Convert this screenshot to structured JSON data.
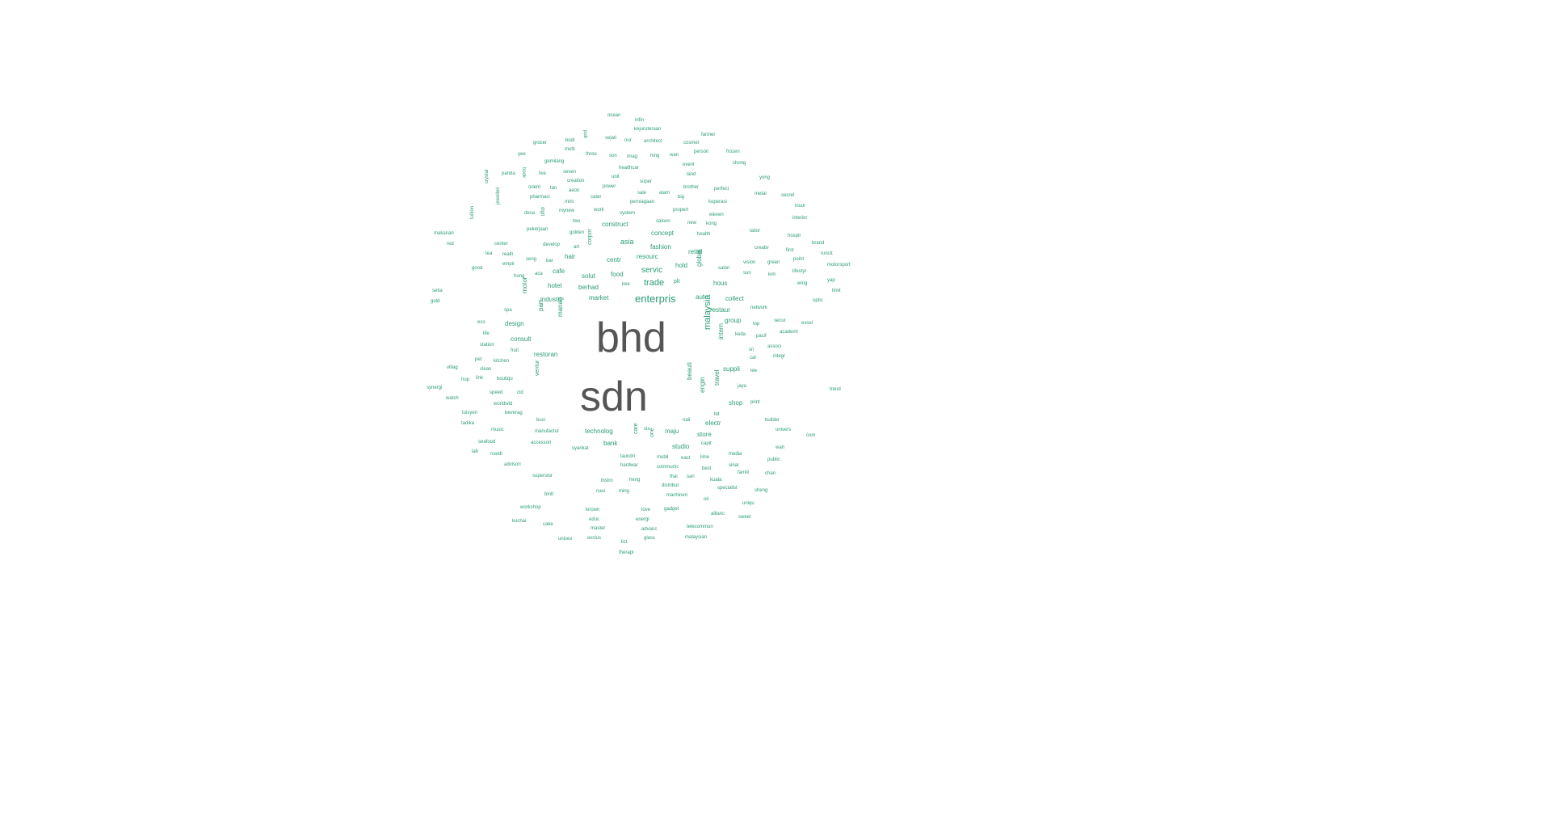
{
  "word_cloud": {
    "colors": {
      "primary_words": "#555555",
      "secondary_words": "#2a9d73"
    },
    "words": [
      {
        "text": "bhd",
        "weight": 100
      },
      {
        "text": "sdn",
        "weight": 100
      },
      {
        "text": "enterpris",
        "weight": 30
      },
      {
        "text": "malaysia",
        "weight": 22
      },
      {
        "text": "trade",
        "weight": 22
      },
      {
        "text": "servic",
        "weight": 20
      },
      {
        "text": "asia",
        "weight": 18
      },
      {
        "text": "concept",
        "weight": 17
      },
      {
        "text": "fashion",
        "weight": 17
      },
      {
        "text": "construct",
        "weight": 17
      },
      {
        "text": "resourc",
        "weight": 16
      },
      {
        "text": "retail",
        "weight": 16
      },
      {
        "text": "hold",
        "weight": 16
      },
      {
        "text": "global",
        "weight": 15
      },
      {
        "text": "food",
        "weight": 17
      },
      {
        "text": "solut",
        "weight": 16
      },
      {
        "text": "centr",
        "weight": 16
      },
      {
        "text": "hous",
        "weight": 16
      },
      {
        "text": "auto",
        "weight": 16
      },
      {
        "text": "collect",
        "weight": 15
      },
      {
        "text": "market",
        "weight": 16
      },
      {
        "text": "berhad",
        "weight": 16
      },
      {
        "text": "cafe",
        "weight": 16
      },
      {
        "text": "hair",
        "weight": 15
      },
      {
        "text": "hotel",
        "weight": 15
      },
      {
        "text": "industri",
        "weight": 16
      },
      {
        "text": "motor",
        "weight": 15
      },
      {
        "text": "part",
        "weight": 15
      },
      {
        "text": "design",
        "weight": 16
      },
      {
        "text": "manag",
        "weight": 15
      },
      {
        "text": "consult",
        "weight": 16
      },
      {
        "text": "restoran",
        "weight": 16
      },
      {
        "text": "restaur",
        "weight": 16
      },
      {
        "text": "group",
        "weight": 15
      },
      {
        "text": "intern",
        "weight": 16
      },
      {
        "text": "suppli",
        "weight": 16
      },
      {
        "text": "beauti",
        "weight": 16
      },
      {
        "text": "engin",
        "weight": 15
      },
      {
        "text": "travel",
        "weight": 15
      },
      {
        "text": "shop",
        "weight": 16
      },
      {
        "text": "ventur",
        "weight": 14
      },
      {
        "text": "corpor",
        "weight": 14
      },
      {
        "text": "technolog",
        "weight": 16
      },
      {
        "text": "bank",
        "weight": 15
      },
      {
        "text": "care",
        "weight": 14
      },
      {
        "text": "one",
        "weight": 14
      },
      {
        "text": "maju",
        "weight": 15
      },
      {
        "text": "studio",
        "weight": 15
      },
      {
        "text": "store",
        "weight": 15
      },
      {
        "text": "electr",
        "weight": 15
      },
      {
        "text": "plt",
        "weight": 14
      },
      {
        "text": "ocean",
        "weight": 10
      },
      {
        "text": "infin",
        "weight": 10
      },
      {
        "text": "kejuruteraan",
        "weight": 10
      },
      {
        "text": "farmer",
        "weight": 10
      },
      {
        "text": "grocer",
        "weight": 10
      },
      {
        "text": "bodi",
        "weight": 10
      },
      {
        "text": "pub",
        "weight": 10
      },
      {
        "text": "sejati",
        "weight": 10
      },
      {
        "text": "nur",
        "weight": 10
      },
      {
        "text": "architect",
        "weight": 10
      },
      {
        "text": "cosmet",
        "weight": 10
      },
      {
        "text": "multi",
        "weight": 10
      },
      {
        "text": "frozen",
        "weight": 10
      },
      {
        "text": "yee",
        "weight": 10
      },
      {
        "text": "three",
        "weight": 10
      },
      {
        "text": "son",
        "weight": 10
      },
      {
        "text": "imag",
        "weight": 10
      },
      {
        "text": "hing",
        "weight": 10
      },
      {
        "text": "wan",
        "weight": 10
      },
      {
        "text": "person",
        "weight": 10
      },
      {
        "text": "gemilang",
        "weight": 10
      },
      {
        "text": "healthcar",
        "weight": 10
      },
      {
        "text": "event",
        "weight": 10
      },
      {
        "text": "chong",
        "weight": 10
      },
      {
        "text": "panda",
        "weight": 10
      },
      {
        "text": "book",
        "weight": 10
      },
      {
        "text": "live",
        "weight": 10
      },
      {
        "text": "seven",
        "weight": 10
      },
      {
        "text": "unit",
        "weight": 10
      },
      {
        "text": "land",
        "weight": 10
      },
      {
        "text": "yong",
        "weight": 10
      },
      {
        "text": "creation",
        "weight": 10
      },
      {
        "text": "super",
        "weight": 10
      },
      {
        "text": "power",
        "weight": 10
      },
      {
        "text": "brother",
        "weight": 10
      },
      {
        "text": "perfect",
        "weight": 10
      },
      {
        "text": "orient",
        "weight": 10
      },
      {
        "text": "tan",
        "weight": 10
      },
      {
        "text": "aeon",
        "weight": 10
      },
      {
        "text": "sale",
        "weight": 10
      },
      {
        "text": "alam",
        "weight": 10
      },
      {
        "text": "metal",
        "weight": 10
      },
      {
        "text": "secret",
        "weight": 10
      },
      {
        "text": "crystal",
        "weight": 10
      },
      {
        "text": "pharmaci",
        "weight": 10
      },
      {
        "text": "mini",
        "weight": 10
      },
      {
        "text": "cater",
        "weight": 10
      },
      {
        "text": "perniagaan",
        "weight": 10
      },
      {
        "text": "big",
        "weight": 10
      },
      {
        "text": "koperasi",
        "weight": 10
      },
      {
        "text": "insur",
        "weight": 10
      },
      {
        "text": "jewelleri",
        "weight": 10
      },
      {
        "text": "desa",
        "weight": 10
      },
      {
        "text": "digit",
        "weight": 10
      },
      {
        "text": "mynew",
        "weight": 10
      },
      {
        "text": "work",
        "weight": 10
      },
      {
        "text": "system",
        "weight": 10
      },
      {
        "text": "propert",
        "weight": 10
      },
      {
        "text": "eleven",
        "weight": 10
      },
      {
        "text": "interior",
        "weight": 10
      },
      {
        "text": "tuition",
        "weight": 10
      },
      {
        "text": "two",
        "weight": 10
      },
      {
        "text": "saloon",
        "weight": 10
      },
      {
        "text": "new",
        "weight": 10
      },
      {
        "text": "kong",
        "weight": 10
      },
      {
        "text": "makanan",
        "weight": 10
      },
      {
        "text": "pekerjaan",
        "weight": 10
      },
      {
        "text": "golden",
        "weight": 10
      },
      {
        "text": "health",
        "weight": 10
      },
      {
        "text": "tailor",
        "weight": 10
      },
      {
        "text": "hospit",
        "weight": 10
      },
      {
        "text": "red",
        "weight": 10
      },
      {
        "text": "center",
        "weight": 10
      },
      {
        "text": "develop",
        "weight": 10
      },
      {
        "text": "art",
        "weight": 10
      },
      {
        "text": "brand",
        "weight": 10
      },
      {
        "text": "tea",
        "weight": 10
      },
      {
        "text": "realti",
        "weight": 10
      },
      {
        "text": "creativ",
        "weight": 10
      },
      {
        "text": "first",
        "weight": 10
      },
      {
        "text": "runcit",
        "weight": 10
      },
      {
        "text": "seng",
        "weight": 10
      },
      {
        "text": "bar",
        "weight": 10
      },
      {
        "text": "empir",
        "weight": 10
      },
      {
        "text": "vision",
        "weight": 10
      },
      {
        "text": "green",
        "weight": 10
      },
      {
        "text": "point",
        "weight": 10
      },
      {
        "text": "motorsport",
        "weight": 10
      },
      {
        "text": "good",
        "weight": 10
      },
      {
        "text": "salon",
        "weight": 10
      },
      {
        "text": "sun",
        "weight": 10
      },
      {
        "text": "kim",
        "weight": 10
      },
      {
        "text": "lifestyl",
        "weight": 10
      },
      {
        "text": "hong",
        "weight": 10
      },
      {
        "text": "aca",
        "weight": 10
      },
      {
        "text": "yap",
        "weight": 10
      },
      {
        "text": "setia",
        "weight": 10
      },
      {
        "text": "kee",
        "weight": 10
      },
      {
        "text": "wing",
        "weight": 10
      },
      {
        "text": "limit",
        "weight": 10
      },
      {
        "text": "gold",
        "weight": 10
      },
      {
        "text": "optic",
        "weight": 10
      },
      {
        "text": "network",
        "weight": 10
      },
      {
        "text": "spa",
        "weight": 10
      },
      {
        "text": "eco",
        "weight": 10
      },
      {
        "text": "top",
        "weight": 10
      },
      {
        "text": "secur",
        "weight": 10
      },
      {
        "text": "excel",
        "weight": 10
      },
      {
        "text": "life",
        "weight": 10
      },
      {
        "text": "keda",
        "weight": 10
      },
      {
        "text": "pacif",
        "weight": 10
      },
      {
        "text": "academi",
        "weight": 10
      },
      {
        "text": "station",
        "weight": 10
      },
      {
        "text": "fruit",
        "weight": 10
      },
      {
        "text": "sri",
        "weight": 10
      },
      {
        "text": "associ",
        "weight": 10
      },
      {
        "text": "pet",
        "weight": 10
      },
      {
        "text": "kitchen",
        "weight": 10
      },
      {
        "text": "car",
        "weight": 10
      },
      {
        "text": "integr",
        "weight": 10
      },
      {
        "text": "villag",
        "weight": 10
      },
      {
        "text": "clean",
        "weight": 10
      },
      {
        "text": "lee",
        "weight": 10
      },
      {
        "text": "hup",
        "weight": 10
      },
      {
        "text": "link",
        "weight": 10
      },
      {
        "text": "boutiqu",
        "weight": 10
      },
      {
        "text": "jaya",
        "weight": 10
      },
      {
        "text": "synergi",
        "weight": 10
      },
      {
        "text": "speed",
        "weight": 10
      },
      {
        "text": "cid",
        "weight": 10
      },
      {
        "text": "trend",
        "weight": 10
      },
      {
        "text": "watch",
        "weight": 10
      },
      {
        "text": "worldwid",
        "weight": 10
      },
      {
        "text": "print",
        "weight": 10
      },
      {
        "text": "beverag",
        "weight": 10
      },
      {
        "text": "ltd",
        "weight": 10
      },
      {
        "text": "tuisyen",
        "weight": 10
      },
      {
        "text": "busi",
        "weight": 10
      },
      {
        "text": "nail",
        "weight": 10
      },
      {
        "text": "builder",
        "weight": 10
      },
      {
        "text": "tadika",
        "weight": 10
      },
      {
        "text": "music",
        "weight": 10
      },
      {
        "text": "manufactur",
        "weight": 10
      },
      {
        "text": "six",
        "weight": 10
      },
      {
        "text": "univers",
        "weight": 10
      },
      {
        "text": "com",
        "weight": 10
      },
      {
        "text": "seafood",
        "weight": 10
      },
      {
        "text": "accessori",
        "weight": 10
      },
      {
        "text": "capit",
        "weight": 10
      },
      {
        "text": "lab",
        "weight": 10
      },
      {
        "text": "noodl",
        "weight": 10
      },
      {
        "text": "syarikat",
        "weight": 10
      },
      {
        "text": "wah",
        "weight": 10
      },
      {
        "text": "laundri",
        "weight": 10
      },
      {
        "text": "mobil",
        "weight": 10
      },
      {
        "text": "east",
        "weight": 10
      },
      {
        "text": "lime",
        "weight": 10
      },
      {
        "text": "media",
        "weight": 10
      },
      {
        "text": "public",
        "weight": 10
      },
      {
        "text": "advisori",
        "weight": 10
      },
      {
        "text": "hardwar",
        "weight": 10
      },
      {
        "text": "communic",
        "weight": 10
      },
      {
        "text": "best",
        "weight": 10
      },
      {
        "text": "sinar",
        "weight": 10
      },
      {
        "text": "famili",
        "weight": 10
      },
      {
        "text": "chan",
        "weight": 10
      },
      {
        "text": "superstor",
        "weight": 10
      },
      {
        "text": "thai",
        "weight": 10
      },
      {
        "text": "san",
        "weight": 10
      },
      {
        "text": "kuala",
        "weight": 10
      },
      {
        "text": "bistro",
        "weight": 10
      },
      {
        "text": "heng",
        "weight": 10
      },
      {
        "text": "distribut",
        "weight": 10
      },
      {
        "text": "specialist",
        "weight": 10
      },
      {
        "text": "sheng",
        "weight": 10
      },
      {
        "text": "nasi",
        "weight": 10
      },
      {
        "text": "ming",
        "weight": 10
      },
      {
        "text": "machineri",
        "weight": 10
      },
      {
        "text": "bintl",
        "weight": 10
      },
      {
        "text": "oil",
        "weight": 10
      },
      {
        "text": "uniqu",
        "weight": 10
      },
      {
        "text": "workshop",
        "weight": 10
      },
      {
        "text": "known",
        "weight": 10
      },
      {
        "text": "love",
        "weight": 10
      },
      {
        "text": "gadget",
        "weight": 10
      },
      {
        "text": "allianc",
        "weight": 10
      },
      {
        "text": "educ",
        "weight": 10
      },
      {
        "text": "energi",
        "weight": 10
      },
      {
        "text": "sweet",
        "weight": 10
      },
      {
        "text": "kuchai",
        "weight": 10
      },
      {
        "text": "cake",
        "weight": 10
      },
      {
        "text": "master",
        "weight": 10
      },
      {
        "text": "advanc",
        "weight": 10
      },
      {
        "text": "telecommun",
        "weight": 10
      },
      {
        "text": "unisex",
        "weight": 10
      },
      {
        "text": "exclus",
        "weight": 10
      },
      {
        "text": "glass",
        "weight": 10
      },
      {
        "text": "malaysian",
        "weight": 10
      },
      {
        "text": "list",
        "weight": 10
      },
      {
        "text": "therapi",
        "weight": 10
      }
    ]
  }
}
